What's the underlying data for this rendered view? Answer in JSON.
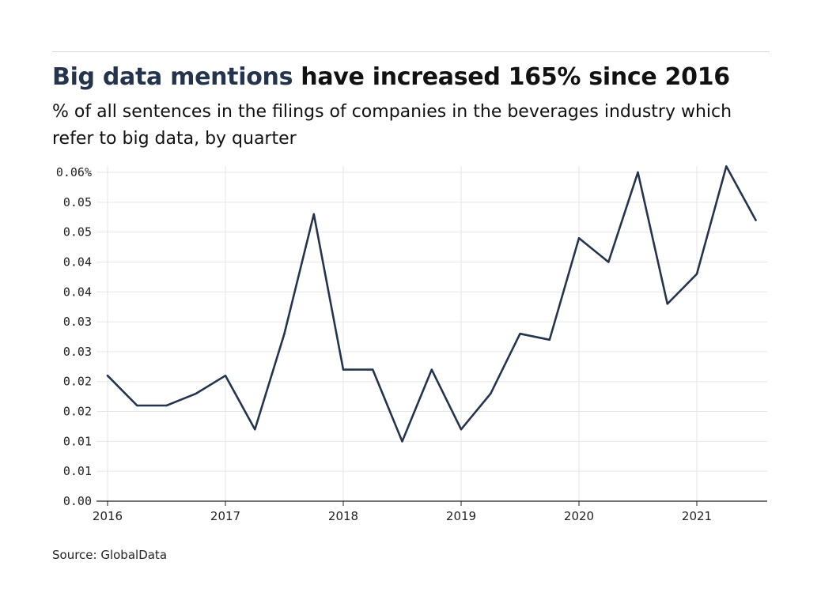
{
  "header": {
    "title_highlight": "Big data mentions",
    "title_rest": " have increased 165% since 2016",
    "subtitle": "% of all sentences in the filings of companies in the beverages industry which refer to big data, by quarter"
  },
  "footer": {
    "source": "Source: GlobalData"
  },
  "colors": {
    "line": "#24344d",
    "grid": "#e6e6e6",
    "axis": "#222222",
    "highlight": "#24344d"
  },
  "chart_data": {
    "type": "line",
    "title": "Big data mentions have increased 165% since 2016",
    "xlabel": "",
    "ylabel": "",
    "grid": true,
    "x_ticks": [
      "2016",
      "2017",
      "2018",
      "2019",
      "2020",
      "2021"
    ],
    "y_ticks": [
      "0.00",
      "0.01",
      "0.01",
      "0.02",
      "0.02",
      "0.03",
      "0.03",
      "0.04",
      "0.04",
      "0.05",
      "0.05",
      "0.06%"
    ],
    "ylim": [
      0,
      0.055
    ],
    "xlim": [
      2016.0,
      2021.6
    ],
    "series": [
      {
        "x": [
          2016.0,
          2016.25,
          2016.5,
          2016.75,
          2017.0,
          2017.25,
          2017.5,
          2017.75,
          2018.0,
          2018.25,
          2018.5,
          2018.75,
          2019.0,
          2019.25,
          2019.5,
          2019.75,
          2020.0,
          2020.25,
          2020.5,
          2020.75,
          2021.0,
          2021.25,
          2021.5
        ],
        "values": [
          0.021,
          0.016,
          0.016,
          0.018,
          0.021,
          0.012,
          0.028,
          0.048,
          0.022,
          0.022,
          0.01,
          0.022,
          0.012,
          0.018,
          0.028,
          0.027,
          0.044,
          0.04,
          0.055,
          0.033,
          0.038,
          0.056,
          0.047
        ]
      }
    ]
  }
}
